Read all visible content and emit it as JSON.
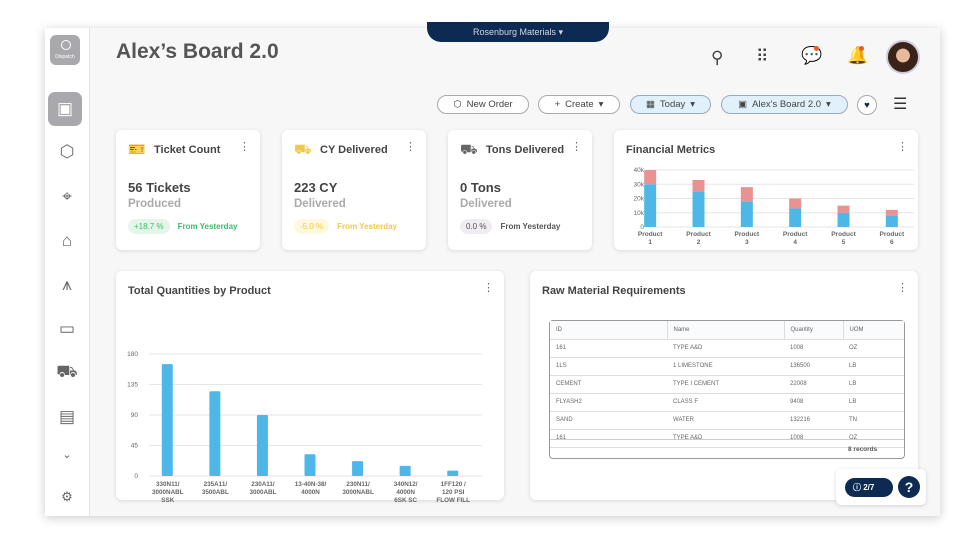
{
  "header": {
    "title": "Alex’s Board 2.0",
    "company": "Rosenburg Materials",
    "logo_label": "Dispatch"
  },
  "toolbar": {
    "new_order": "New Order",
    "create": "Create",
    "date": "Today",
    "board": "Alex's Board 2.0"
  },
  "notifications": {
    "chat_unread": true,
    "bell_unread": true
  },
  "kpis": [
    {
      "title": "Ticket Count",
      "value": "56 Tickets",
      "label": "Produced",
      "change": "+18.7 %",
      "from": "From Yesterday",
      "color": "#3dbb6a",
      "bg": "#e4f6ea",
      "icon": "ticket-icon"
    },
    {
      "title": "CY Delivered",
      "value": "223 CY",
      "label": "Delivered",
      "change": "-5.0 %",
      "from": "From Yesterday",
      "color": "#f0c84a",
      "bg": "#fdf8de",
      "icon": "truck-icon"
    },
    {
      "title": "Tons Delivered",
      "value": "0 Tons",
      "label": "Delivered",
      "change": "0.0 %",
      "from": "From Yesterday",
      "color": "#555",
      "bg": "#f0edf2",
      "icon": "truck-icon"
    }
  ],
  "financial": {
    "title": "Financial Metrics"
  },
  "quantities": {
    "title": "Total Quantities by Product"
  },
  "raw": {
    "title": "Raw Material Requirements",
    "columns": [
      "ID",
      "Name",
      "Quantity",
      "UOM"
    ],
    "rows": [
      [
        "161",
        "TYPE A&D",
        "1008",
        "OZ"
      ],
      [
        "1LS",
        "1 LIMESTONE",
        "136500",
        "LB"
      ],
      [
        "CEMENT",
        "TYPE I CEMENT",
        "22008",
        "LB"
      ],
      [
        "FLYASH2",
        "CLASS F",
        "9408",
        "LB"
      ],
      [
        "SAND",
        "WATER",
        "132216",
        "TN"
      ],
      [
        "161",
        "TYPE A&D",
        "1008",
        "OZ"
      ]
    ],
    "footer": "8 records"
  },
  "help": {
    "counter": "2/7",
    "help": "?"
  },
  "chart_data": [
    {
      "type": "bar",
      "stacked": true,
      "categories": [
        "Product 1",
        "Product 2",
        "Product 3",
        "Product 4",
        "Product 5",
        "Product 6"
      ],
      "series": [
        {
          "values": [
            30000,
            25000,
            18000,
            13000,
            10000,
            8000
          ],
          "color": "#4db8e8"
        },
        {
          "values": [
            10000,
            8000,
            10000,
            7000,
            5000,
            4000
          ],
          "color": "#e89391"
        }
      ],
      "yticks": [
        "0",
        "10k",
        "20k",
        "30k",
        "40k"
      ],
      "ylim": [
        0,
        40000
      ],
      "grid": true
    },
    {
      "type": "bar",
      "categories": [
        "330N11/ 3000NABL SSK",
        "235A11/ 3500ABL",
        "230A11/ 3000ABL",
        "13-40N-38/ 4000N",
        "230N11/ 3000NABL",
        "340N12/ 4000N 6SK SC",
        "1FF120 / 120 PSI FLOW FILL"
      ],
      "values": [
        165,
        125,
        90,
        32,
        22,
        15,
        8
      ],
      "color": "#4db8e8",
      "yticks": [
        "0",
        "45",
        "90",
        "135",
        "180"
      ],
      "ylim": [
        0,
        180
      ],
      "grid": true
    }
  ]
}
